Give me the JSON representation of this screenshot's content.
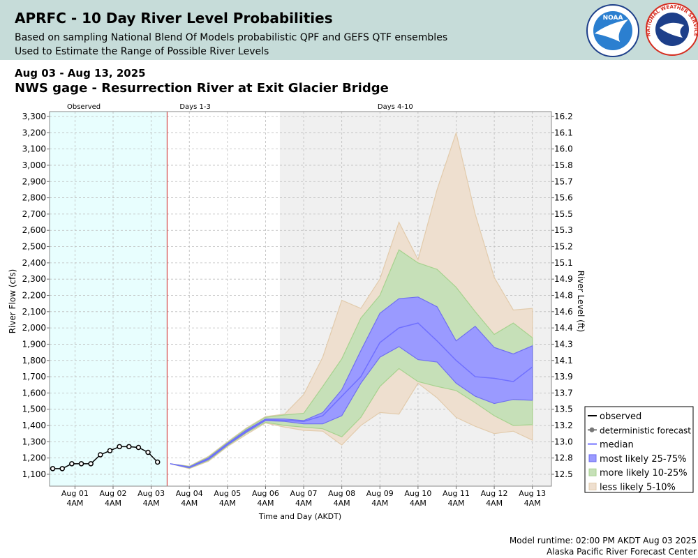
{
  "chart_data": {
    "type": "probability-band",
    "title": "APRFC - 10 Day River Level Probabilities",
    "subtitles": [
      "Based on sampling National Blend Of Models probabilistic QPF and GEFS QTF ensembles",
      "Used to Estimate the Range of Possible River Levels"
    ],
    "logos": [
      "NOAA",
      "NATIONAL WEATHER SERVICE"
    ],
    "date_range": "Aug 03 - Aug 13, 2025",
    "gage": "NWS gage - Resurrection River at Exit Glacier Bridge",
    "ylabel": "River Flow (cfs)",
    "y2label": "River Level (ft)",
    "xlabel": "Time and Day (AKDT)",
    "footer": [
      "Model runtime: 02:00 PM AKDT Aug 03 2025",
      "Alaska Pacific River Forecast Center"
    ],
    "grid": true,
    "legend": "lower right",
    "xlim": [
      "2025-07-31T12:00",
      "2025-08-13T16:00"
    ],
    "ylim": [
      1027,
      3330
    ],
    "yticks": [
      {
        "value": 1100,
        "label": "1,100"
      },
      {
        "value": 1200,
        "label": "1,200"
      },
      {
        "value": 1300,
        "label": "1,300"
      },
      {
        "value": 1400,
        "label": "1,400"
      },
      {
        "value": 1500,
        "label": "1,500"
      },
      {
        "value": 1600,
        "label": "1,600"
      },
      {
        "value": 1700,
        "label": "1,700"
      },
      {
        "value": 1800,
        "label": "1,800"
      },
      {
        "value": 1900,
        "label": "1,900"
      },
      {
        "value": 2000,
        "label": "2,000"
      },
      {
        "value": 2100,
        "label": "2,100"
      },
      {
        "value": 2200,
        "label": "2,200"
      },
      {
        "value": 2300,
        "label": "2,300"
      },
      {
        "value": 2400,
        "label": "2,400"
      },
      {
        "value": 2500,
        "label": "2,500"
      },
      {
        "value": 2600,
        "label": "2,600"
      },
      {
        "value": 2700,
        "label": "2,700"
      },
      {
        "value": 2800,
        "label": "2,800"
      },
      {
        "value": 2900,
        "label": "2,900"
      },
      {
        "value": 3000,
        "label": "3,000"
      },
      {
        "value": 3100,
        "label": "3,100"
      },
      {
        "value": 3200,
        "label": "3,200"
      },
      {
        "value": 3300,
        "label": "3,300"
      }
    ],
    "y2ticks": [
      12.5,
      12.8,
      {
        "value": 13,
        "label": "13.0"
      },
      13.2,
      13.5,
      13.7,
      13.9,
      14.1,
      14.3,
      14.4,
      14.6,
      14.8,
      14.9,
      15.1,
      15.2,
      15.3,
      15.5,
      15.6,
      15.7,
      15.8,
      {
        "value": 16,
        "label": "16.0"
      },
      16.1,
      16.2
    ],
    "xticks": [
      {
        "value": "2025-08-01T04:00",
        "label": "Aug 01\n4AM"
      },
      {
        "value": "2025-08-02T04:00",
        "label": "Aug 02\n4AM"
      },
      {
        "value": "2025-08-03T04:00",
        "label": "Aug 03\n4AM"
      },
      {
        "value": "2025-08-04T04:00",
        "label": "Aug 04\n4AM"
      },
      {
        "value": "2025-08-05T04:00",
        "label": "Aug 05\n4AM"
      },
      {
        "value": "2025-08-06T04:00",
        "label": "Aug 06\n4AM"
      },
      {
        "value": "2025-08-07T04:00",
        "label": "Aug 07\n4AM"
      },
      {
        "value": "2025-08-08T04:00",
        "label": "Aug 08\n4AM"
      },
      {
        "value": "2025-08-09T04:00",
        "label": "Aug 09\n4AM"
      },
      {
        "value": "2025-08-10T04:00",
        "label": "Aug 10\n4AM"
      },
      {
        "value": "2025-08-11T04:00",
        "label": "Aug 11\n4AM"
      },
      {
        "value": "2025-08-12T04:00",
        "label": "Aug 12\n4AM"
      },
      {
        "value": "2025-08-13T04:00",
        "label": "Aug 13\n4AM"
      }
    ],
    "regions": [
      {
        "label": "Observed",
        "start": "2025-07-31T12:00",
        "end": "2025-08-03T14:00",
        "color": "#e8fefe"
      },
      {
        "label": "Days 1-3",
        "start": "2025-08-03T14:00",
        "end": "2025-08-06T13:00",
        "color": "#ffffff"
      },
      {
        "label": "Days 4-10",
        "start": "2025-08-06T13:00",
        "end": "2025-08-13T16:00",
        "color": "#f0f0f0"
      }
    ],
    "runtime_color": "#cc2222",
    "observed": {
      "name": "observed",
      "color": "#000000",
      "x": [
        "2025-07-31T14:00",
        "2025-07-31T20:00",
        "2025-08-01T02:00",
        "2025-08-01T08:00",
        "2025-08-01T14:00",
        "2025-08-01T20:00",
        "2025-08-02T02:00",
        "2025-08-02T08:00",
        "2025-08-02T14:00",
        "2025-08-02T20:00",
        "2025-08-03T02:00",
        "2025-08-03T08:00"
      ],
      "values": [
        1135,
        1135,
        1165,
        1165,
        1165,
        1220,
        1245,
        1270,
        1270,
        1265,
        1235,
        1175
      ]
    },
    "deterministic": {
      "name": "deterministic forecast",
      "color": "#777777"
    },
    "forecast_x": [
      "2025-08-03T16:00",
      "2025-08-04T04:00",
      "2025-08-04T16:00",
      "2025-08-05T04:00",
      "2025-08-05T16:00",
      "2025-08-06T04:00",
      "2025-08-06T16:00",
      "2025-08-07T04:00",
      "2025-08-07T16:00",
      "2025-08-08T04:00",
      "2025-08-08T16:00",
      "2025-08-09T04:00",
      "2025-08-09T16:00",
      "2025-08-10T04:00",
      "2025-08-10T16:00",
      "2025-08-11T04:00",
      "2025-08-11T16:00",
      "2025-08-12T04:00",
      "2025-08-12T16:00",
      "2025-08-13T04:00"
    ],
    "median": {
      "name": "median",
      "color": "#7070ff",
      "values": [
        1165,
        1142,
        1195,
        1285,
        1365,
        1435,
        1432,
        1425,
        1460,
        1580,
        1700,
        1910,
        2000,
        2030,
        1920,
        1800,
        1700,
        1690,
        1670,
        1760
      ]
    },
    "bands": [
      {
        "name": "most likely 25-75%",
        "color": "#9a9aff",
        "edge": "#6f6ff0",
        "lower": [
          1165,
          1140,
          1190,
          1280,
          1360,
          1430,
          1425,
          1410,
          1410,
          1460,
          1660,
          1820,
          1885,
          1805,
          1790,
          1660,
          1580,
          1535,
          1560,
          1555
        ],
        "upper": [
          1165,
          1145,
          1200,
          1290,
          1372,
          1440,
          1440,
          1430,
          1480,
          1620,
          1860,
          2090,
          2180,
          2190,
          2130,
          1920,
          2010,
          1880,
          1840,
          1890
        ]
      },
      {
        "name": "more likely 10-25%",
        "color": "#c6e0b8",
        "edge": "#a6d28e",
        "lower": [
          1165,
          1138,
          1185,
          1275,
          1355,
          1420,
          1400,
          1390,
          1380,
          1330,
          1450,
          1640,
          1750,
          1670,
          1640,
          1615,
          1540,
          1460,
          1400,
          1405
        ],
        "upper": [
          1165,
          1148,
          1205,
          1295,
          1380,
          1450,
          1465,
          1475,
          1640,
          1810,
          2060,
          2200,
          2480,
          2400,
          2360,
          2250,
          2100,
          1960,
          2030,
          1940
        ]
      },
      {
        "name": "less likely 5-10%",
        "color": "#eedfcf",
        "edge": "#e2cbac",
        "lower": [
          1165,
          1135,
          1180,
          1270,
          1345,
          1415,
          1390,
          1370,
          1365,
          1280,
          1400,
          1480,
          1470,
          1660,
          1570,
          1450,
          1395,
          1350,
          1365,
          1310
        ],
        "upper": [
          1165,
          1150,
          1210,
          1300,
          1385,
          1455,
          1470,
          1590,
          1820,
          2170,
          2120,
          2300,
          2650,
          2420,
          2850,
          3200,
          2700,
          2310,
          2110,
          2120
        ]
      }
    ]
  }
}
